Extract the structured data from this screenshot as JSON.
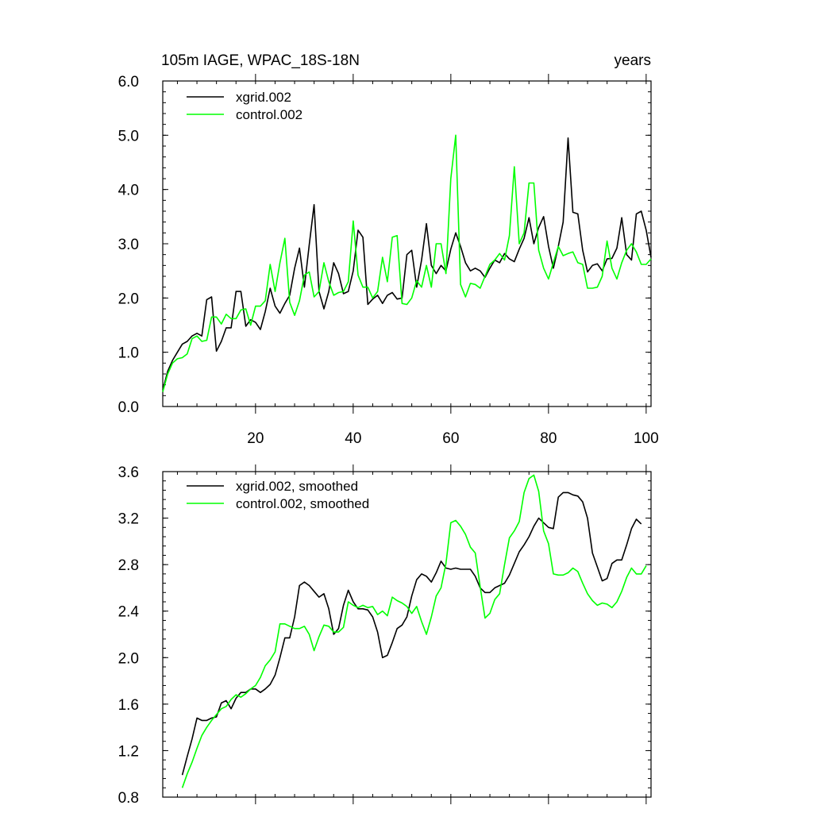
{
  "chart_data": [
    {
      "type": "line",
      "title": "105m IAGE, WPAC_18S-18N",
      "title_right": "years",
      "xlabel": "",
      "ylabel": "",
      "xlim": [
        1,
        101
      ],
      "ylim": [
        0,
        6
      ],
      "x_major_ticks": [
        20,
        40,
        60,
        80,
        100
      ],
      "x_tick_labels": [
        "20",
        "40",
        "60",
        "80",
        "100"
      ],
      "y_major_ticks": [
        0,
        1,
        2,
        3,
        4,
        5,
        6
      ],
      "y_tick_labels": [
        "0.0",
        "1.0",
        "2.0",
        "3.0",
        "4.0",
        "5.0",
        "6.0"
      ],
      "y_minor_step": 0.2,
      "x_minor_step": 4,
      "x_start": 1,
      "series": [
        {
          "name": "xgrid.002",
          "color": "#000000",
          "values": [
            0.3,
            0.65,
            0.85,
            1.0,
            1.15,
            1.2,
            1.3,
            1.35,
            1.3,
            1.97,
            2.02,
            1.02,
            1.2,
            1.45,
            1.45,
            2.12,
            2.12,
            1.48,
            1.6,
            1.55,
            1.42,
            1.75,
            2.18,
            1.85,
            1.72,
            1.9,
            2.05,
            2.55,
            2.92,
            2.2,
            2.98,
            3.72,
            2.12,
            1.8,
            2.12,
            2.65,
            2.45,
            2.08,
            2.12,
            2.5,
            3.25,
            3.12,
            1.88,
            1.98,
            2.05,
            1.9,
            2.05,
            2.1,
            1.98,
            2.0,
            2.8,
            2.88,
            2.2,
            2.7,
            3.37,
            2.6,
            2.45,
            2.6,
            2.5,
            2.9,
            3.2,
            2.95,
            2.65,
            2.5,
            2.55,
            2.5,
            2.38,
            2.55,
            2.7,
            2.65,
            2.82,
            2.72,
            2.67,
            2.9,
            3.1,
            3.48,
            3.0,
            3.3,
            3.5,
            2.95,
            2.55,
            2.95,
            3.4,
            4.95,
            3.58,
            3.55,
            2.88,
            2.48,
            2.6,
            2.63,
            2.5,
            2.72,
            2.73,
            2.92,
            3.48,
            2.8,
            2.7,
            3.55,
            3.6,
            3.25,
            2.75
          ]
        },
        {
          "name": "control.002",
          "color": "#00FF00",
          "values": [
            0.27,
            0.6,
            0.8,
            0.88,
            0.9,
            0.97,
            1.25,
            1.3,
            1.2,
            1.22,
            1.65,
            1.65,
            1.52,
            1.7,
            1.62,
            1.62,
            1.78,
            1.8,
            1.5,
            1.85,
            1.85,
            1.95,
            2.62,
            2.12,
            2.65,
            3.1,
            1.92,
            1.68,
            1.95,
            2.42,
            2.48,
            2.02,
            2.12,
            2.65,
            2.3,
            2.05,
            2.1,
            2.12,
            2.3,
            3.42,
            2.42,
            2.2,
            2.2,
            2.0,
            2.12,
            2.75,
            2.3,
            3.12,
            3.15,
            1.9,
            1.88,
            2.0,
            2.32,
            2.2,
            2.6,
            2.2,
            3.0,
            3.0,
            2.45,
            4.2,
            5.0,
            2.25,
            2.02,
            2.27,
            2.25,
            2.18,
            2.4,
            2.62,
            2.7,
            2.82,
            2.7,
            3.15,
            4.42,
            3.0,
            3.2,
            4.12,
            4.12,
            2.88,
            2.55,
            2.35,
            2.65,
            2.95,
            2.78,
            2.82,
            2.85,
            2.65,
            2.62,
            2.18,
            2.18,
            2.2,
            2.4,
            3.05,
            2.55,
            2.35,
            2.65,
            2.88,
            3.0,
            2.85,
            2.62,
            2.62,
            2.72
          ]
        }
      ]
    },
    {
      "type": "line",
      "title": "",
      "xlabel": "",
      "ylabel": "",
      "xlim": [
        1,
        101
      ],
      "ylim": [
        0.8,
        3.6
      ],
      "x_major_ticks": [
        20,
        40,
        60,
        80,
        100
      ],
      "x_tick_labels": [
        "",
        "",
        "",
        "",
        ""
      ],
      "y_major_ticks": [
        0.8,
        1.2,
        1.6,
        2.0,
        2.4,
        2.8,
        3.2,
        3.6
      ],
      "y_tick_labels": [
        "0.8",
        "1.2",
        "1.6",
        "2.0",
        "2.4",
        "2.8",
        "3.2",
        "3.6"
      ],
      "y_minor_step": 0.08,
      "x_minor_step": 4,
      "x_start": 5,
      "series": [
        {
          "name": "xgrid.002, smoothed",
          "color": "#000000",
          "values": [
            0.99,
            1.15,
            1.3,
            1.48,
            1.46,
            1.46,
            1.48,
            1.49,
            1.61,
            1.63,
            1.56,
            1.65,
            1.7,
            1.7,
            1.73,
            1.73,
            1.7,
            1.73,
            1.77,
            1.85,
            2.0,
            2.17,
            2.17,
            2.35,
            2.62,
            2.65,
            2.62,
            2.57,
            2.52,
            2.55,
            2.42,
            2.2,
            2.25,
            2.45,
            2.58,
            2.48,
            2.42,
            2.42,
            2.41,
            2.35,
            2.22,
            2.0,
            2.02,
            2.13,
            2.25,
            2.28,
            2.35,
            2.53,
            2.67,
            2.72,
            2.7,
            2.65,
            2.73,
            2.83,
            2.77,
            2.76,
            2.77,
            2.76,
            2.76,
            2.76,
            2.7,
            2.6,
            2.56,
            2.56,
            2.6,
            2.62,
            2.64,
            2.71,
            2.81,
            2.91,
            2.97,
            3.04,
            3.13,
            3.2,
            3.16,
            3.12,
            3.11,
            3.38,
            3.42,
            3.42,
            3.4,
            3.39,
            3.34,
            3.2,
            2.9,
            2.78,
            2.66,
            2.68,
            2.81,
            2.84,
            2.84,
            2.97,
            3.11,
            3.19,
            3.15
          ]
        },
        {
          "name": "control.002, smoothed",
          "color": "#00FF00",
          "values": [
            0.88,
            1.0,
            1.1,
            1.22,
            1.33,
            1.4,
            1.46,
            1.51,
            1.56,
            1.58,
            1.64,
            1.68,
            1.66,
            1.69,
            1.73,
            1.76,
            1.83,
            1.93,
            1.98,
            2.05,
            2.29,
            2.29,
            2.27,
            2.25,
            2.25,
            2.27,
            2.2,
            2.06,
            2.18,
            2.28,
            2.27,
            2.22,
            2.22,
            2.26,
            2.48,
            2.45,
            2.43,
            2.45,
            2.43,
            2.44,
            2.37,
            2.4,
            2.36,
            2.52,
            2.49,
            2.47,
            2.44,
            2.38,
            2.44,
            2.31,
            2.2,
            2.35,
            2.53,
            2.6,
            2.81,
            3.16,
            3.18,
            3.13,
            3.06,
            2.95,
            2.9,
            2.61,
            2.34,
            2.38,
            2.5,
            2.55,
            2.8,
            3.03,
            3.09,
            3.17,
            3.42,
            3.54,
            3.57,
            3.43,
            3.09,
            2.98,
            2.72,
            2.71,
            2.71,
            2.73,
            2.77,
            2.74,
            2.64,
            2.55,
            2.49,
            2.45,
            2.47,
            2.46,
            2.43,
            2.48,
            2.57,
            2.69,
            2.77,
            2.72,
            2.72,
            2.79
          ]
        }
      ]
    }
  ]
}
